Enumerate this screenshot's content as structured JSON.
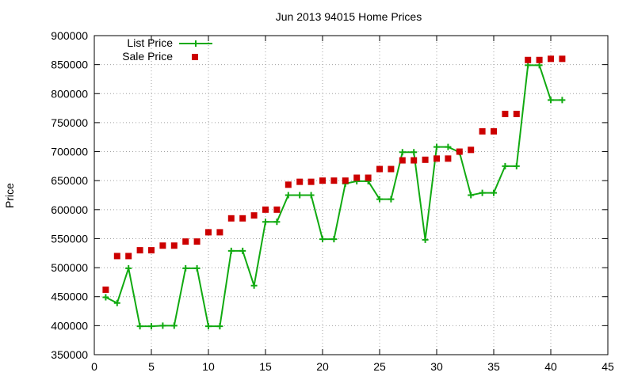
{
  "chart_data": {
    "type": "line",
    "title": "Jun 2013 94015 Home Prices",
    "xlabel": "",
    "ylabel": "Price",
    "xlim": [
      0,
      45
    ],
    "ylim": [
      350000,
      900000
    ],
    "x_ticks": [
      0,
      5,
      10,
      15,
      20,
      25,
      30,
      35,
      40,
      45
    ],
    "y_ticks": [
      350000,
      400000,
      450000,
      500000,
      550000,
      600000,
      650000,
      700000,
      750000,
      800000,
      850000,
      900000
    ],
    "grid": true,
    "legend_position": "top-left",
    "series": [
      {
        "name": "List Price",
        "style": "line-plus",
        "color": "#11aa11",
        "x": [
          1,
          2,
          3,
          4,
          5,
          6,
          7,
          8,
          9,
          10,
          11,
          12,
          13,
          14,
          15,
          16,
          17,
          18,
          19,
          20,
          21,
          22,
          23,
          24,
          25,
          26,
          27,
          28,
          29,
          30,
          31,
          32,
          33,
          34,
          35,
          36,
          37,
          38,
          39,
          40,
          41
        ],
        "y": [
          449000,
          439000,
          499000,
          399000,
          399000,
          400000,
          400000,
          499000,
          499000,
          399000,
          399000,
          529000,
          529000,
          469000,
          579000,
          579000,
          625000,
          625000,
          625000,
          549000,
          549000,
          645000,
          649000,
          649000,
          618000,
          618000,
          699000,
          699000,
          548000,
          708000,
          708000,
          699000,
          625000,
          629000,
          629000,
          675000,
          675000,
          849000,
          849000,
          789000,
          789000
        ]
      },
      {
        "name": "Sale Price",
        "style": "squares",
        "color": "#cc0000",
        "x": [
          1,
          2,
          3,
          4,
          5,
          6,
          7,
          8,
          9,
          10,
          11,
          12,
          13,
          14,
          15,
          16,
          17,
          18,
          19,
          20,
          21,
          22,
          23,
          24,
          25,
          26,
          27,
          28,
          29,
          30,
          31,
          32,
          33,
          34,
          35,
          36,
          37,
          38,
          39,
          40,
          41
        ],
        "y": [
          462000,
          520000,
          520000,
          530000,
          530000,
          538000,
          538000,
          545000,
          545000,
          561000,
          561000,
          585000,
          585000,
          590000,
          600000,
          600000,
          643000,
          648000,
          648000,
          650000,
          650000,
          650000,
          655000,
          655000,
          670000,
          670000,
          685000,
          685000,
          686000,
          688000,
          688000,
          700000,
          703000,
          735000,
          735000,
          765000,
          765000,
          858000,
          858000,
          860000,
          860000
        ]
      }
    ]
  }
}
